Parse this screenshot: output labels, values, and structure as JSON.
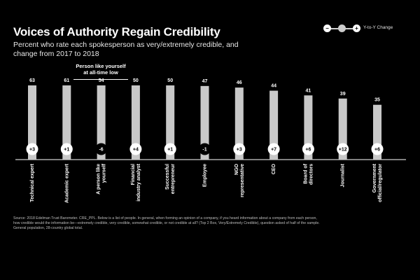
{
  "title": "Voices of Authority Regain Credibility",
  "subtitle": "Percent who rate each spokesperson as very/extremely credible, and change from 2017 to 2018",
  "legend": {
    "minus": "−",
    "plus": "+",
    "label": "Y-to-Y Change"
  },
  "callout": {
    "text": "Person like yourself at all-time low"
  },
  "source": "Source: 2018 Edelman Trust Barometer. CRE_PPL. Below is a list of people. In general, when forming an opinion of a company, if you heard information about a company from each person, how credible would the information be—extremely credible, very credible, somewhat credible, or not credible at all? (Top 2 Box, Very/Extremely Credible), question asked of half of the sample. General population, 28-country global total.",
  "colors": {
    "background": "#000000",
    "bar": "#c8c8c8",
    "badge_positive": "#ffffff",
    "badge_negative": "#000000",
    "text": "#ffffff"
  },
  "chart_data": {
    "type": "bar",
    "categories": [
      "Technical expert",
      "Academic expert",
      "A person like yourself",
      "Financial industry analyst",
      "Successful entrepreneur",
      "Employee",
      "NGO representative",
      "CEO",
      "Board of directors",
      "Journalist",
      "Government official/regulator"
    ],
    "category_lines": [
      [
        "Technical expert"
      ],
      [
        "Academic expert"
      ],
      [
        "A person like",
        "yourself"
      ],
      [
        "Financial",
        "industry analyst"
      ],
      [
        "Successful",
        "entrepreneur"
      ],
      [
        "Employee"
      ],
      [
        "NGO",
        "representative"
      ],
      [
        "CEO"
      ],
      [
        "Board of",
        "directors"
      ],
      [
        "Journalist"
      ],
      [
        "Government",
        "official/regulator"
      ]
    ],
    "values": [
      63,
      61,
      54,
      50,
      50,
      47,
      46,
      44,
      41,
      39,
      35
    ],
    "change": [
      3,
      1,
      -6,
      4,
      1,
      -1,
      3,
      7,
      6,
      12,
      6
    ],
    "change_labels": [
      "+3",
      "+1",
      "-6",
      "+4",
      "+1",
      "-1",
      "+3",
      "+7",
      "+6",
      "+12",
      "+6"
    ],
    "ylim": [
      0,
      70
    ],
    "grid": false
  }
}
